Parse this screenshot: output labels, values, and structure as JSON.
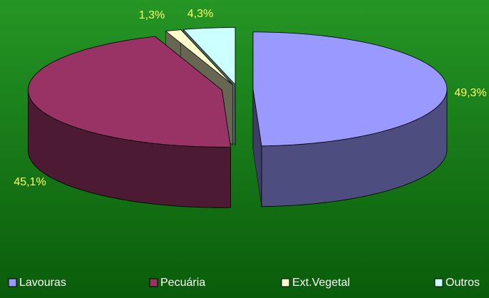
{
  "chart_data": {
    "type": "pie",
    "categories": [
      "Lavouras",
      "Pecuária",
      "Ext.Vegetal",
      "Outros"
    ],
    "values": [
      49.3,
      45.1,
      1.3,
      4.3
    ],
    "value_labels": [
      "49,3%",
      "45,1%",
      "1,3%",
      "4,3%"
    ],
    "colors": [
      "#9999ff",
      "#993366",
      "#ffffcc",
      "#ccffff"
    ],
    "legend": "bottom"
  }
}
